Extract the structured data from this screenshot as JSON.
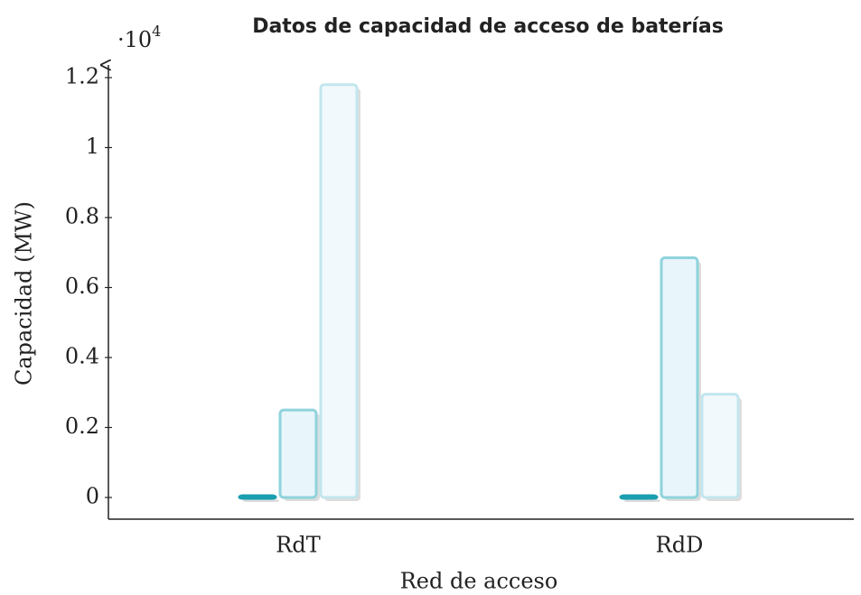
{
  "chart_data": {
    "type": "bar",
    "title": "Datos de capacidad de acceso de baterías",
    "x_label": "Red de acceso",
    "y_label": "Capacidad (MW)",
    "y_multiplier": "·10",
    "y_multiplier_exponent": "4",
    "categories": [
      "RdT",
      "RdD"
    ],
    "series": [
      {
        "color": "#1a9fb0",
        "values": [
          50,
          50
        ]
      },
      {
        "color": "#8fd3dc",
        "values": [
          2500,
          6850
        ]
      },
      {
        "color": "#c2e6ee",
        "values": [
          11800,
          2950
        ]
      }
    ],
    "ylim": [
      -620,
      12360
    ],
    "yticks": [
      0,
      {
        "value": 2000,
        "label": "0.2"
      },
      {
        "value": 4000,
        "label": "0.4"
      },
      {
        "value": 6000,
        "label": "0.6"
      },
      {
        "value": 8000,
        "label": "0.8"
      },
      {
        "value": 10000,
        "label": "1"
      },
      {
        "value": 12000,
        "label": "1.2"
      }
    ]
  }
}
